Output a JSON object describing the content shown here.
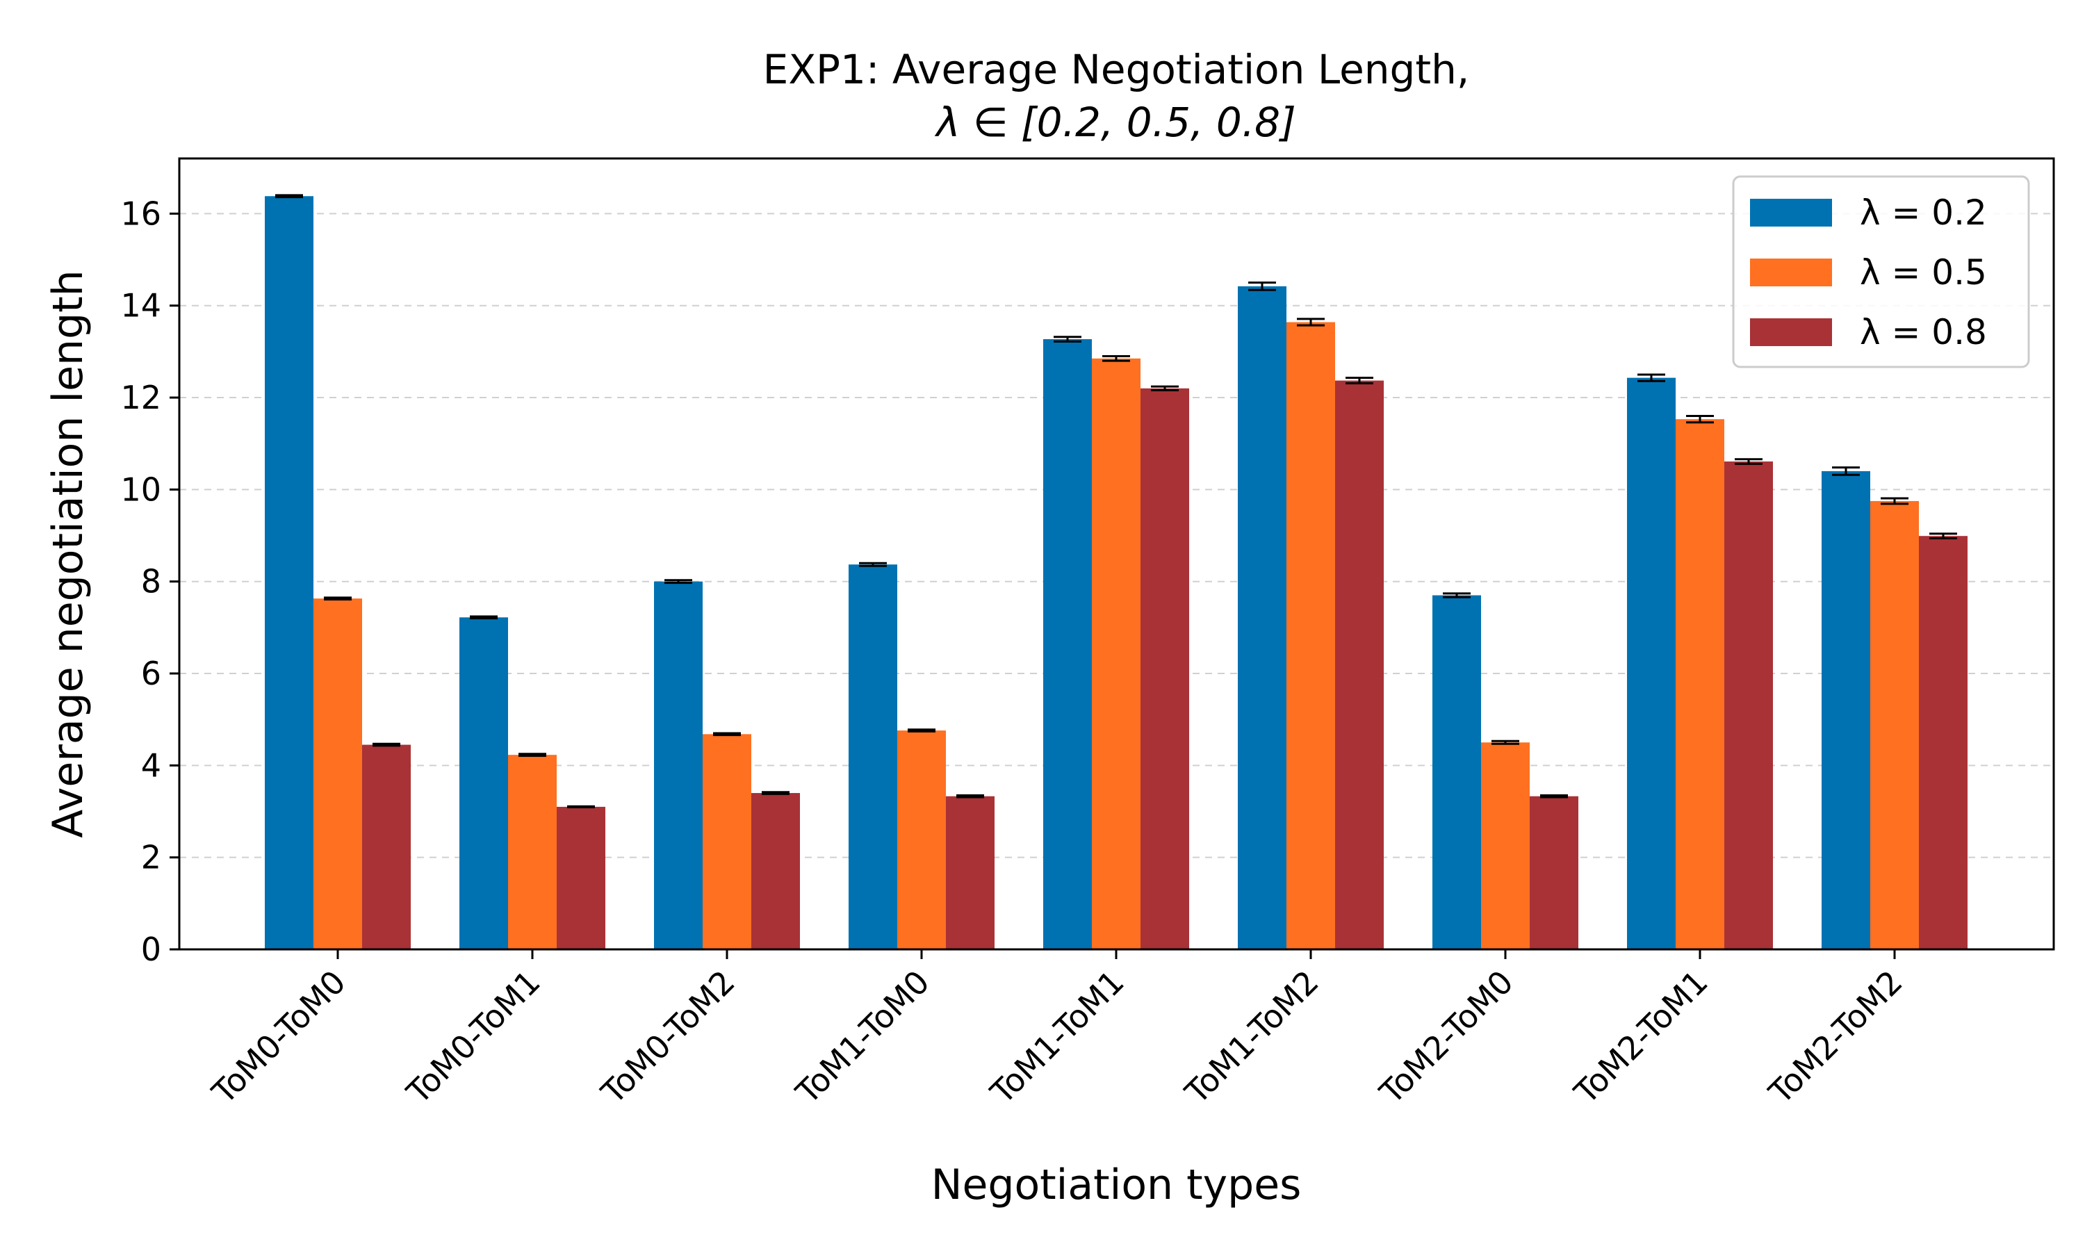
{
  "chart_data": {
    "type": "bar",
    "title_line1": "EXP1: Average Negotiation Length,",
    "title_line2": "λ ∈ [0.2, 0.5, 0.8]",
    "xlabel": "Negotiation types",
    "ylabel": "Average negotiation length",
    "ylim": [
      0,
      17.2
    ],
    "yticks": [
      0,
      2,
      4,
      6,
      8,
      10,
      12,
      14,
      16
    ],
    "grid": "horizontal dashed",
    "legend_placement": "top-right",
    "categories": [
      "ToM0-ToM0",
      "ToM0-ToM1",
      "ToM0-ToM2",
      "ToM1-ToM0",
      "ToM1-ToM1",
      "ToM1-ToM2",
      "ToM2-ToM0",
      "ToM2-ToM1",
      "ToM2-ToM2"
    ],
    "series": [
      {
        "name": "λ = 0.2",
        "color": "#0072b2",
        "values": [
          16.38,
          7.22,
          8.0,
          8.37,
          13.27,
          14.42,
          7.7,
          12.43,
          10.4
        ],
        "errors": [
          0.02,
          0.02,
          0.03,
          0.03,
          0.05,
          0.08,
          0.04,
          0.07,
          0.08
        ]
      },
      {
        "name": "λ = 0.5",
        "color": "#ff7020",
        "values": [
          7.63,
          4.23,
          4.68,
          4.76,
          12.85,
          13.64,
          4.5,
          11.53,
          9.75
        ],
        "errors": [
          0.02,
          0.02,
          0.02,
          0.02,
          0.05,
          0.07,
          0.03,
          0.07,
          0.06
        ]
      },
      {
        "name": "λ = 0.8",
        "color": "#a83236",
        "values": [
          4.45,
          3.1,
          3.4,
          3.33,
          12.2,
          12.37,
          3.33,
          10.61,
          8.99
        ],
        "errors": [
          0.02,
          0.01,
          0.02,
          0.02,
          0.04,
          0.06,
          0.02,
          0.05,
          0.05
        ]
      }
    ]
  }
}
